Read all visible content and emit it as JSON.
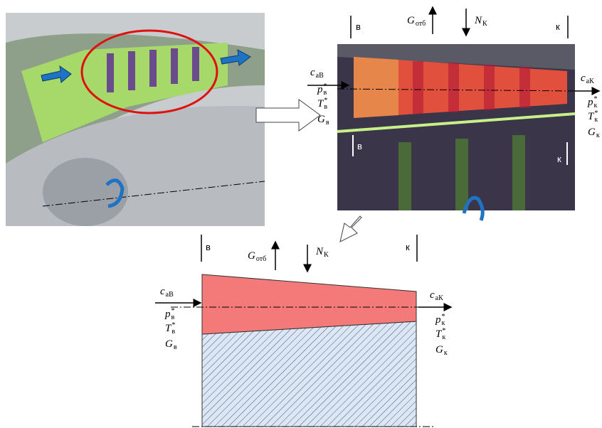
{
  "top_diagram": {
    "inlet_label": "в",
    "outlet_label": "к",
    "inner_inlet_label": "в",
    "inner_outlet_label": "к",
    "bleed": {
      "symbol": "G",
      "sub": "отб"
    },
    "power": {
      "symbol": "N",
      "sub": "К"
    },
    "inlet_params": [
      {
        "symbol": "c",
        "sub": "aВ"
      },
      {
        "symbol": "p",
        "sup": "*",
        "sub": "в"
      },
      {
        "symbol": "T",
        "sup": "*",
        "sub": "в"
      },
      {
        "symbol": "G",
        "sub": "в"
      }
    ],
    "outlet_params": [
      {
        "symbol": "c",
        "sub": "aК"
      },
      {
        "symbol": "p",
        "sup": "*",
        "sub": "к"
      },
      {
        "symbol": "T",
        "sup": "*",
        "sub": "к"
      },
      {
        "symbol": "G",
        "sub": "к"
      }
    ]
  },
  "bottom_diagram": {
    "inlet_label": "в",
    "outlet_label": "к",
    "bleed": {
      "symbol": "G",
      "sub": "отб"
    },
    "power": {
      "symbol": "N",
      "sub": "К"
    },
    "inlet_params": [
      {
        "symbol": "c",
        "sub": "aВ"
      },
      {
        "symbol": "p",
        "sup": "*",
        "sub": "в"
      },
      {
        "symbol": "T",
        "sup": "*",
        "sub": "в"
      },
      {
        "symbol": "G",
        "sub": "в"
      }
    ],
    "outlet_params": [
      {
        "symbol": "c",
        "sub": "aК"
      },
      {
        "symbol": "p",
        "sup": "*",
        "sub": "к"
      },
      {
        "symbol": "T",
        "sup": "*",
        "sub": "к"
      },
      {
        "symbol": "G",
        "sub": "к"
      }
    ]
  }
}
